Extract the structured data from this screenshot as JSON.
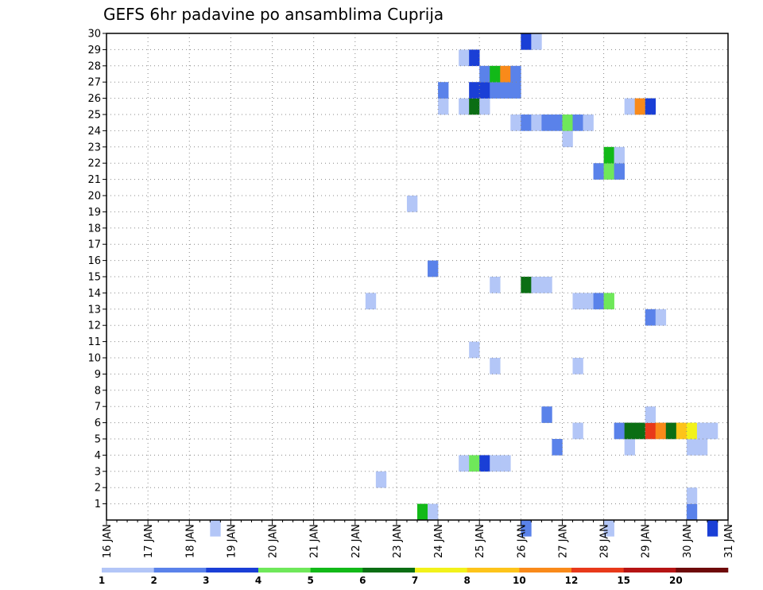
{
  "chart_data": {
    "type": "heatmap",
    "title": "GEFS 6hr padavine po ansamblima Cuprija",
    "xlabel": "",
    "ylabel": "",
    "x_tick_labels": [
      "16 JAN",
      "17 JAN",
      "18 JAN",
      "19 JAN",
      "20 JAN",
      "21 JAN",
      "22 JAN",
      "23 JAN",
      "24 JAN",
      "25 JAN",
      "26 JAN",
      "27 JAN",
      "28 JAN",
      "29 JAN",
      "30 JAN",
      "31 JAN"
    ],
    "xlim": [
      0,
      60
    ],
    "x_unit": "6h steps from 16 JAN 00",
    "y_tick_labels": [
      "1",
      "2",
      "3",
      "4",
      "5",
      "6",
      "7",
      "8",
      "9",
      "10",
      "11",
      "12",
      "13",
      "14",
      "15",
      "16",
      "17",
      "18",
      "19",
      "20",
      "21",
      "22",
      "23",
      "24",
      "25",
      "26",
      "27",
      "28",
      "29",
      "30"
    ],
    "ylim": [
      0,
      30
    ],
    "grid": true,
    "colorbar": {
      "labels": [
        "1",
        "2",
        "3",
        "4",
        "5",
        "6",
        "7",
        "8",
        "10",
        "12",
        "15",
        "20"
      ],
      "colors": [
        "#b3c6f7",
        "#5a82ea",
        "#1a3fd6",
        "#6fe85a",
        "#12b918",
        "#0b6e14",
        "#f2f21a",
        "#fdc41a",
        "#f98a1a",
        "#e8391a",
        "#b51414",
        "#6e0a0a"
      ]
    },
    "cells": [
      [
        0,
        10,
        1
      ],
      [
        0,
        40,
        2
      ],
      [
        0,
        48,
        1
      ],
      [
        0,
        58,
        3
      ],
      [
        1,
        30,
        5
      ],
      [
        1,
        31,
        1
      ],
      [
        1,
        56,
        2
      ],
      [
        2,
        56,
        1
      ],
      [
        3,
        26,
        1
      ],
      [
        4,
        34,
        1
      ],
      [
        4,
        35,
        4
      ],
      [
        4,
        36,
        3
      ],
      [
        4,
        37,
        1
      ],
      [
        4,
        38,
        1
      ],
      [
        5,
        43,
        2
      ],
      [
        5,
        50,
        1
      ],
      [
        5,
        56,
        1
      ],
      [
        5,
        57,
        1
      ],
      [
        6,
        45,
        1
      ],
      [
        6,
        49,
        2
      ],
      [
        6,
        50,
        6
      ],
      [
        6,
        51,
        6
      ],
      [
        6,
        52,
        12
      ],
      [
        6,
        53,
        10
      ],
      [
        6,
        54,
        6
      ],
      [
        6,
        55,
        8
      ],
      [
        6,
        56,
        7
      ],
      [
        6,
        57,
        1
      ],
      [
        6,
        58,
        1
      ],
      [
        7,
        42,
        2
      ],
      [
        7,
        52,
        1
      ],
      [
        10,
        37,
        1
      ],
      [
        10,
        45,
        1
      ],
      [
        11,
        35,
        1
      ],
      [
        13,
        52,
        2
      ],
      [
        13,
        53,
        1
      ],
      [
        14,
        25,
        1
      ],
      [
        14,
        45,
        1
      ],
      [
        14,
        46,
        1
      ],
      [
        14,
        47,
        2
      ],
      [
        14,
        48,
        4
      ],
      [
        15,
        37,
        1
      ],
      [
        15,
        40,
        6
      ],
      [
        15,
        41,
        1
      ],
      [
        15,
        42,
        1
      ],
      [
        16,
        31,
        2
      ],
      [
        20,
        29,
        1
      ],
      [
        22,
        47,
        2
      ],
      [
        22,
        48,
        4
      ],
      [
        22,
        49,
        2
      ],
      [
        23,
        48,
        5
      ],
      [
        23,
        49,
        1
      ],
      [
        24,
        44,
        1
      ],
      [
        25,
        39,
        1
      ],
      [
        25,
        40,
        2
      ],
      [
        25,
        41,
        1
      ],
      [
        25,
        42,
        2
      ],
      [
        25,
        43,
        2
      ],
      [
        25,
        44,
        4
      ],
      [
        25,
        45,
        2
      ],
      [
        25,
        46,
        1
      ],
      [
        26,
        32,
        1
      ],
      [
        26,
        34,
        1
      ],
      [
        26,
        35,
        6
      ],
      [
        26,
        36,
        1
      ],
      [
        26,
        50,
        1
      ],
      [
        26,
        51,
        10
      ],
      [
        26,
        52,
        3
      ],
      [
        27,
        32,
        2
      ],
      [
        27,
        35,
        3
      ],
      [
        27,
        36,
        3
      ],
      [
        27,
        37,
        2
      ],
      [
        27,
        38,
        2
      ],
      [
        27,
        39,
        2
      ],
      [
        28,
        36,
        2
      ],
      [
        28,
        37,
        5
      ],
      [
        28,
        38,
        10
      ],
      [
        28,
        39,
        2
      ],
      [
        29,
        34,
        1
      ],
      [
        29,
        35,
        3
      ],
      [
        30,
        40,
        3
      ],
      [
        30,
        41,
        1
      ]
    ]
  }
}
